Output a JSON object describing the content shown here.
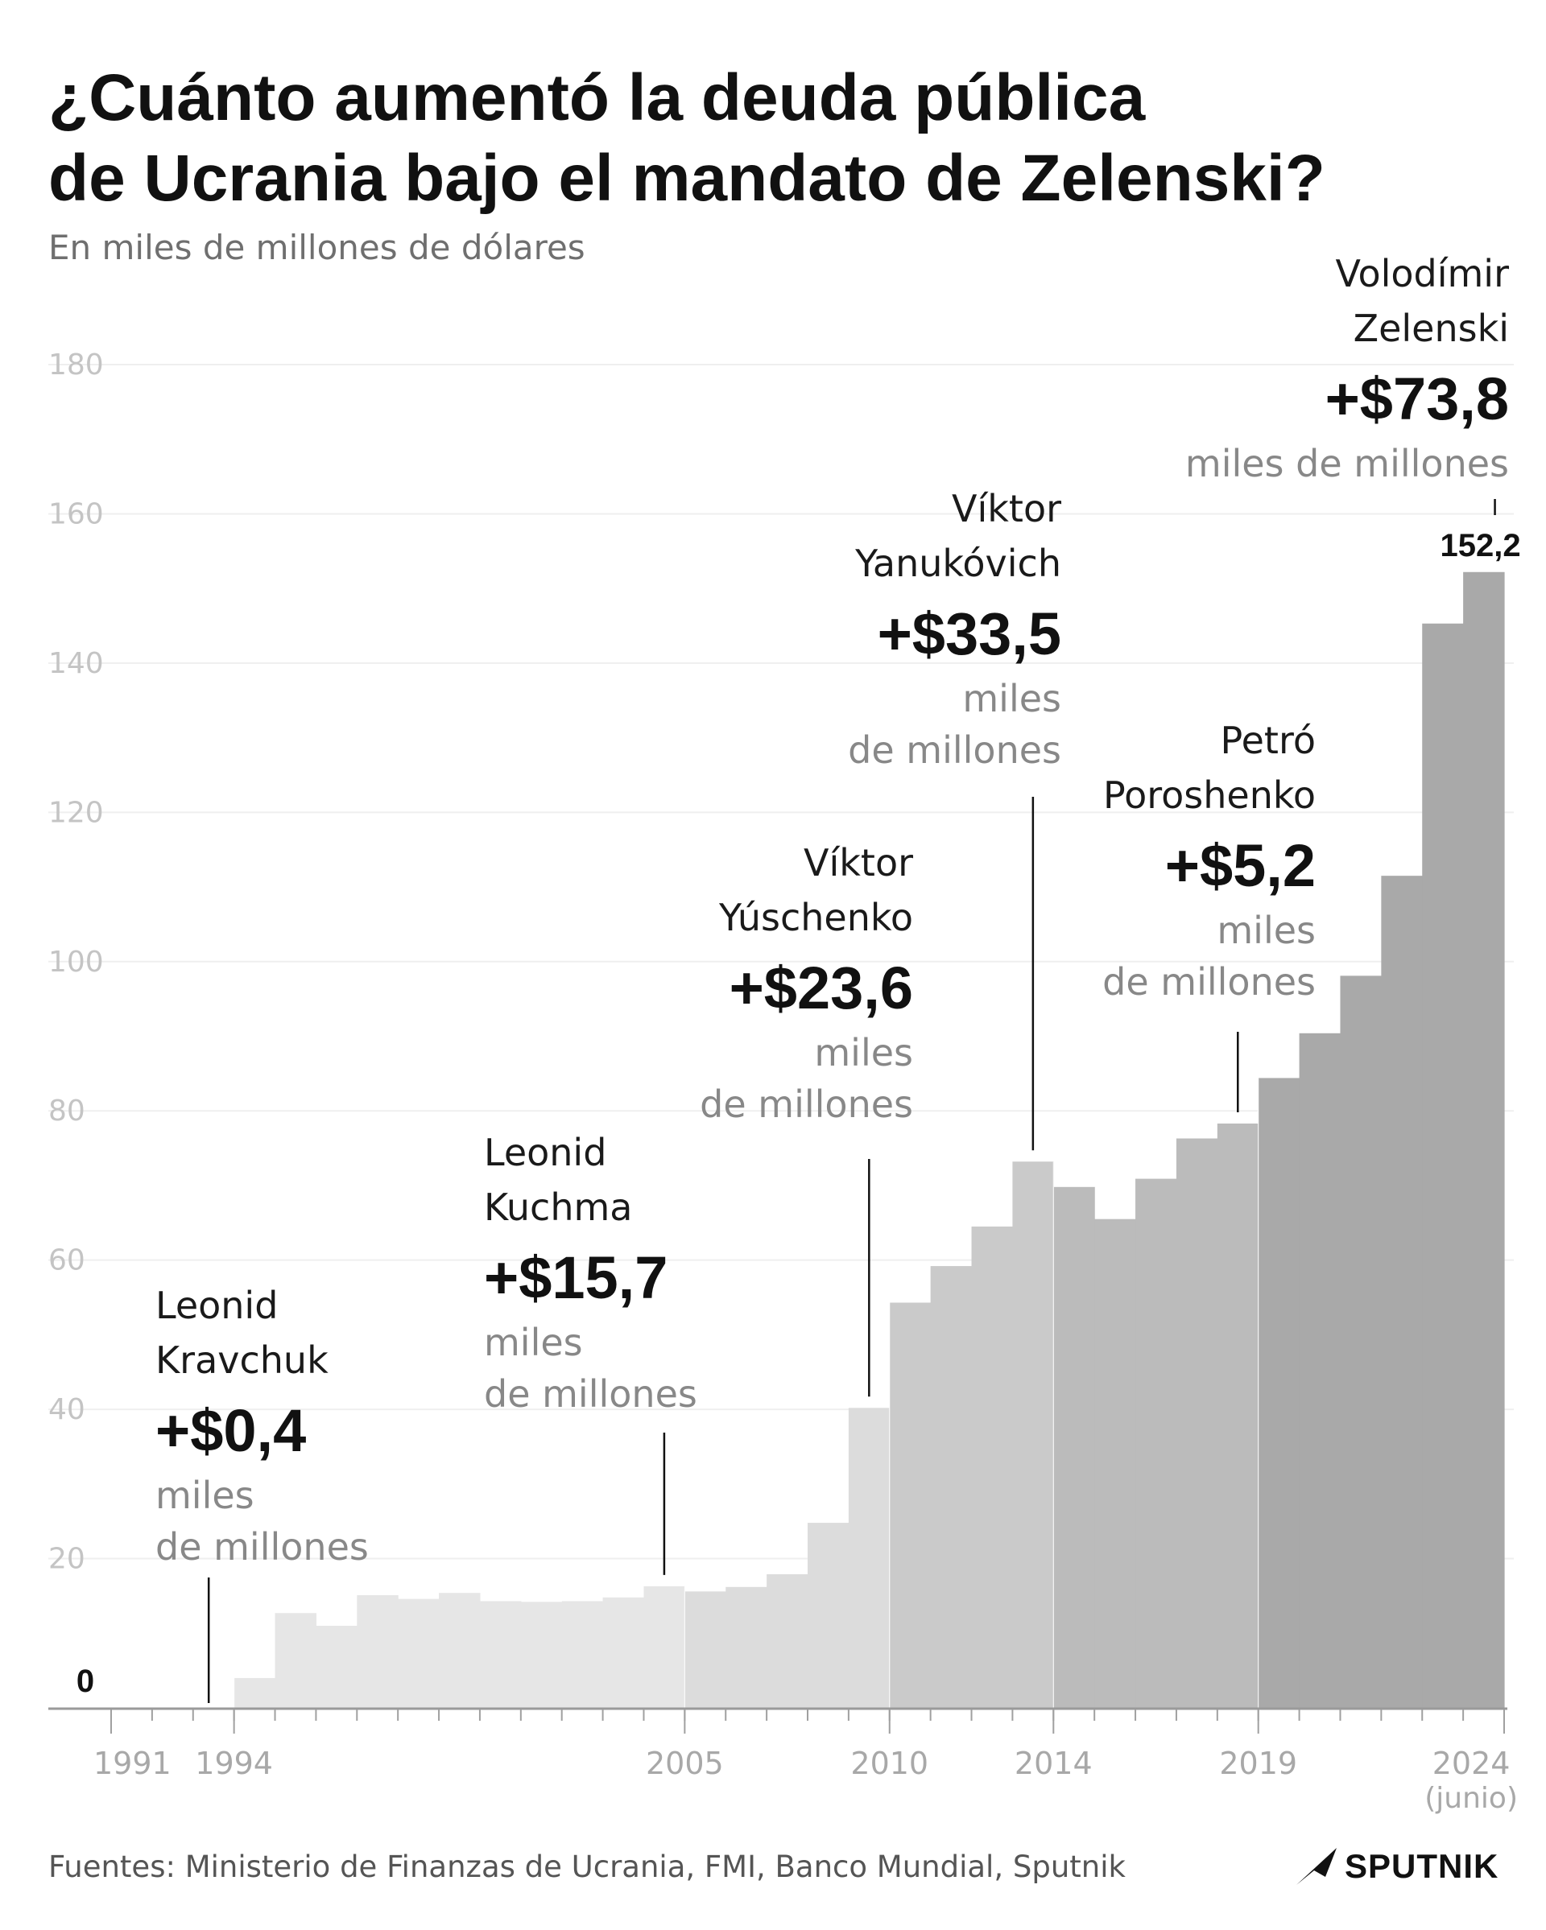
{
  "title_line1": "¿Cuánto aumentó la deuda pública",
  "title_line2": "de Ucrania bajo el mandato de Zelenski?",
  "subtitle": "En miles de millones de dólares",
  "footer": "Fuentes: Ministerio de Finanzas de Ucrania, FMI, Banco Mundial, Sputnik",
  "logo_text": "SPUTNIK",
  "colors": {
    "kravchuk": "#f0f0f0",
    "kuchma": "#e6e6e6",
    "yushchenko": "#dcdcdc",
    "yanukovich": "#cacaca",
    "poroshenko": "#bbbbbb",
    "zelenski": "#a9a9a9"
  },
  "chart_data": {
    "type": "bar",
    "x": [
      "1991",
      "1992",
      "1993",
      "1994",
      "1995",
      "1996",
      "1997",
      "1998",
      "1999",
      "2000",
      "2001",
      "2002",
      "2003",
      "2004",
      "2005",
      "2006",
      "2007",
      "2008",
      "2009",
      "2010",
      "2011",
      "2012",
      "2013",
      "2014",
      "2015",
      "2016",
      "2017",
      "2018",
      "2019",
      "2020",
      "2021",
      "2022",
      "2023",
      "2024"
    ],
    "values": [
      0,
      0,
      0,
      4.0,
      12.7,
      11.0,
      15.1,
      14.6,
      15.4,
      14.3,
      14.2,
      14.3,
      14.8,
      16.3,
      15.6,
      16.2,
      17.9,
      24.8,
      40.2,
      54.3,
      59.2,
      64.5,
      73.2,
      69.8,
      65.5,
      70.9,
      76.3,
      78.3,
      84.4,
      90.4,
      98.1,
      111.5,
      145.3,
      152.2
    ],
    "period_of_bar": [
      "kravchuk",
      "kravchuk",
      "kravchuk",
      "kuchma",
      "kuchma",
      "kuchma",
      "kuchma",
      "kuchma",
      "kuchma",
      "kuchma",
      "kuchma",
      "kuchma",
      "kuchma",
      "kuchma",
      "yushchenko",
      "yushchenko",
      "yushchenko",
      "yushchenko",
      "yushchenko",
      "yanukovich",
      "yanukovich",
      "yanukovich",
      "yanukovich",
      "poroshenko",
      "poroshenko",
      "poroshenko",
      "poroshenko",
      "poroshenko",
      "zelenski",
      "zelenski",
      "zelenski",
      "zelenski",
      "zelenski",
      "zelenski"
    ],
    "ylim": [
      0,
      180
    ],
    "yticks": [
      "180",
      "160",
      "140",
      "120",
      "100",
      "80",
      "60",
      "40",
      "20"
    ],
    "xtick_labels": [
      {
        "year": "1991",
        "label": "1991"
      },
      {
        "year": "1994",
        "label": "1994"
      },
      {
        "year": "2005",
        "label": "2005"
      },
      {
        "year": "2010",
        "label": "2010"
      },
      {
        "year": "2014",
        "label": "2014"
      },
      {
        "year": "2019",
        "label": "2019"
      },
      {
        "year": "2024",
        "label": "2024"
      }
    ],
    "xtick_sublabel": "(junio)",
    "data_labels": [
      {
        "year": "1991",
        "text": "0"
      },
      {
        "year": "2024",
        "text": "152,2"
      }
    ],
    "grid": true,
    "annotations": [
      {
        "key": "kravchuk",
        "name_line1": "Leonid",
        "name_line2": "Kravchuk",
        "amount": "+$0,4",
        "unit_line1": "miles",
        "unit_line2": "de millones",
        "pointer_year": "1993"
      },
      {
        "key": "kuchma",
        "name_line1": "Leonid",
        "name_line2": "Kuchma",
        "amount": "+$15,7",
        "unit_line1": "miles",
        "unit_line2": "de millones",
        "pointer_year": "2004"
      },
      {
        "key": "yushchenko",
        "name_line1": "Víktor",
        "name_line2": "Yúschenko",
        "amount": "+$23,6",
        "unit_line1": "miles",
        "unit_line2": "de millones",
        "pointer_year": "2009"
      },
      {
        "key": "yanukovich",
        "name_line1": "Víktor",
        "name_line2": "Yanukóvich",
        "amount": "+$33,5",
        "unit_line1": "miles",
        "unit_line2": "de millones",
        "pointer_year": "2013"
      },
      {
        "key": "poroshenko",
        "name_line1": "Petró",
        "name_line2": "Poroshenko",
        "amount": "+$5,2",
        "unit_line1": "miles",
        "unit_line2": "de millones",
        "pointer_year": "2018"
      },
      {
        "key": "zelenski",
        "name_line1": "Volodímir",
        "name_line2": "Zelenski",
        "amount": "+$73,8",
        "unit_line1": "miles de millones",
        "unit_line2": "",
        "pointer_year": "2024"
      }
    ]
  }
}
